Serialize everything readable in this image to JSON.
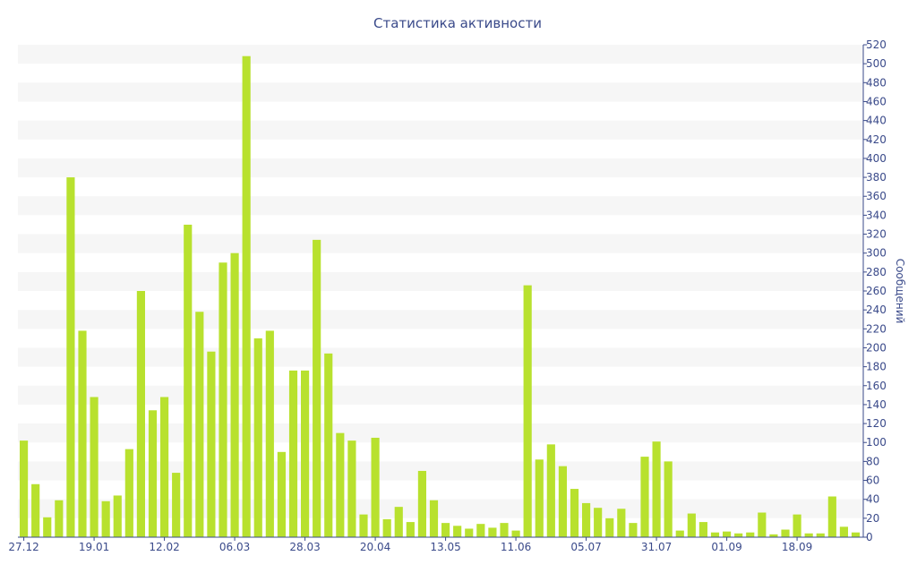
{
  "chart_data": {
    "type": "bar",
    "title": "Статистика активности",
    "ylabel": "Сообщений",
    "xlabel": "",
    "ylim": [
      0,
      520
    ],
    "y_tick_step": 20,
    "y_axis_side": "right",
    "grid": "horizontal bands",
    "colors": {
      "bar": "#b8e12e",
      "text": "#3a4a8a",
      "band": "#f6f6f6"
    },
    "x_tick_labels": [
      "27.12",
      "19.01",
      "12.02",
      "06.03",
      "28.03",
      "20.04",
      "13.05",
      "11.06",
      "05.07",
      "31.07",
      "01.09",
      "18.09"
    ],
    "x_tick_bar_index": [
      0,
      6,
      12,
      18,
      24,
      30,
      36,
      42,
      48,
      54,
      60,
      66
    ],
    "values": [
      102,
      56,
      21,
      39,
      380,
      218,
      148,
      38,
      44,
      93,
      260,
      134,
      148,
      68,
      330,
      238,
      196,
      290,
      300,
      508,
      210,
      218,
      90,
      176,
      176,
      314,
      194,
      110,
      102,
      24,
      105,
      19,
      32,
      16,
      70,
      39,
      15,
      12,
      9,
      14,
      10,
      15,
      7,
      266,
      82,
      98,
      75,
      51,
      36,
      31,
      20,
      30,
      15,
      85,
      101,
      80,
      7,
      25,
      16,
      5,
      6,
      4,
      5,
      26,
      3,
      8,
      24,
      4,
      4,
      43,
      11,
      5
    ]
  }
}
